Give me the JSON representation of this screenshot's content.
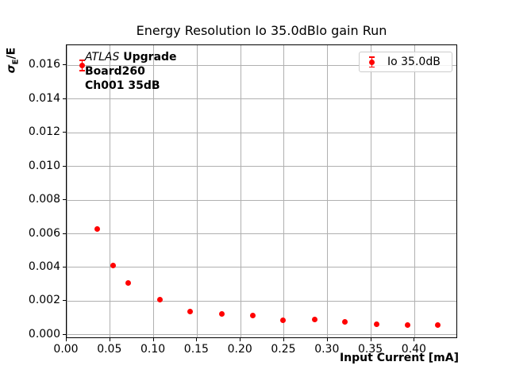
{
  "title": "Energy Resolution Io 35.0dBlo gain Run",
  "annotation": {
    "experiment": "ATLAS",
    "label": "Upgrade",
    "board": "Board260",
    "channel": "Ch001 35dB"
  },
  "legend": {
    "label": "Io 35.0dB",
    "marker_color": "#ff0000",
    "position": "upper right"
  },
  "axes": {
    "xlabel": "Input Current [mA]",
    "ylabel_parts": {
      "sigma": "σ",
      "sub": "E",
      "rest": "/E"
    },
    "x_tick_labels": [
      "0.00",
      "0.05",
      "0.10",
      "0.15",
      "0.20",
      "0.25",
      "0.30",
      "0.35",
      "0.40"
    ],
    "y_tick_labels": [
      "0.000",
      "0.002",
      "0.004",
      "0.006",
      "0.008",
      "0.010",
      "0.012",
      "0.014",
      "0.016"
    ],
    "xlim": [
      0.0,
      0.448
    ],
    "ylim": [
      -0.00015,
      0.0172
    ]
  },
  "colors": {
    "series": "#ff0000",
    "grid": "#b0b0b0",
    "axis": "#000000",
    "legend_border": "#cccccc",
    "background": "#ffffff"
  },
  "chart_data": {
    "type": "scatter",
    "title": "Energy Resolution Io 35.0dBlo gain Run",
    "xlabel": "Input Current [mA]",
    "ylabel": "σE/E",
    "xlim": [
      0.0,
      0.448
    ],
    "ylim": [
      -0.00015,
      0.0172
    ],
    "grid": true,
    "legend_position": "upper right",
    "series": [
      {
        "name": "Io 35.0dB",
        "color": "#ff0000",
        "marker": "circle-with-errorbars",
        "x": [
          0.018,
          0.035,
          0.053,
          0.071,
          0.107,
          0.142,
          0.178,
          0.214,
          0.249,
          0.285,
          0.32,
          0.356,
          0.392,
          0.427
        ],
        "y": [
          0.016,
          0.0063,
          0.0041,
          0.0031,
          0.0021,
          0.0014,
          0.00125,
          0.00116,
          0.00087,
          0.00093,
          0.00078,
          0.00065,
          0.00056,
          0.00058
        ],
        "yerr": [
          0.0003,
          5e-05,
          5e-05,
          5e-05,
          5e-05,
          5e-05,
          5e-05,
          5e-05,
          5e-05,
          5e-05,
          5e-05,
          5e-05,
          5e-05,
          5e-05
        ]
      }
    ]
  }
}
